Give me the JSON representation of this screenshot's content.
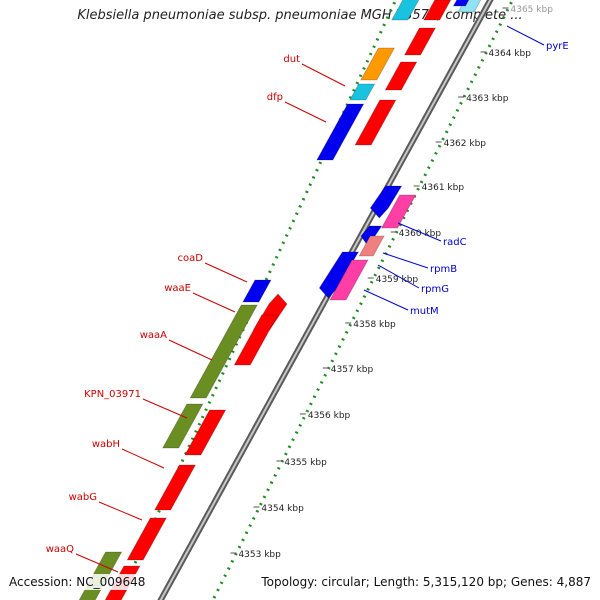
{
  "title": "Klebsiella pneumoniae subsp. pneumoniae MGH 78578, complete ...",
  "footer": {
    "accession": "Accession: NC_009648",
    "summary": "Topology: circular; Length: 5,315,120 bp; Genes: 4,887"
  },
  "scale": {
    "ticks": [
      "4365 kbp",
      "4364 kbp",
      "4363 kbp",
      "4362 kbp",
      "4361 kbp",
      "4360 kbp",
      "4359 kbp",
      "4358 kbp",
      "4357 kbp",
      "4356 kbp",
      "4355 kbp",
      "4354 kbp",
      "4353 kbp"
    ]
  },
  "gene_labels": {
    "red": [
      "dut",
      "dfp",
      "coaD",
      "waaE",
      "waaA",
      "KPN_03971",
      "wabH",
      "wabG",
      "waaQ"
    ],
    "blue": [
      "pyrE",
      "radC",
      "rpmB",
      "rpmG",
      "mutM"
    ]
  },
  "colors": {
    "red_feature": "#ff0000",
    "blue_feature": "#0000ee",
    "olive_feature": "#6b8e23",
    "pink_feature": "#ff3fa6",
    "light_pink_feature": "#f08080",
    "orange_feature": "#ff9900",
    "cyan_feature": "#19c3df",
    "backbone": "#888888",
    "dotted_guide": "#228b22",
    "label_red": "#cc0000",
    "label_blue": "#0000cc"
  }
}
